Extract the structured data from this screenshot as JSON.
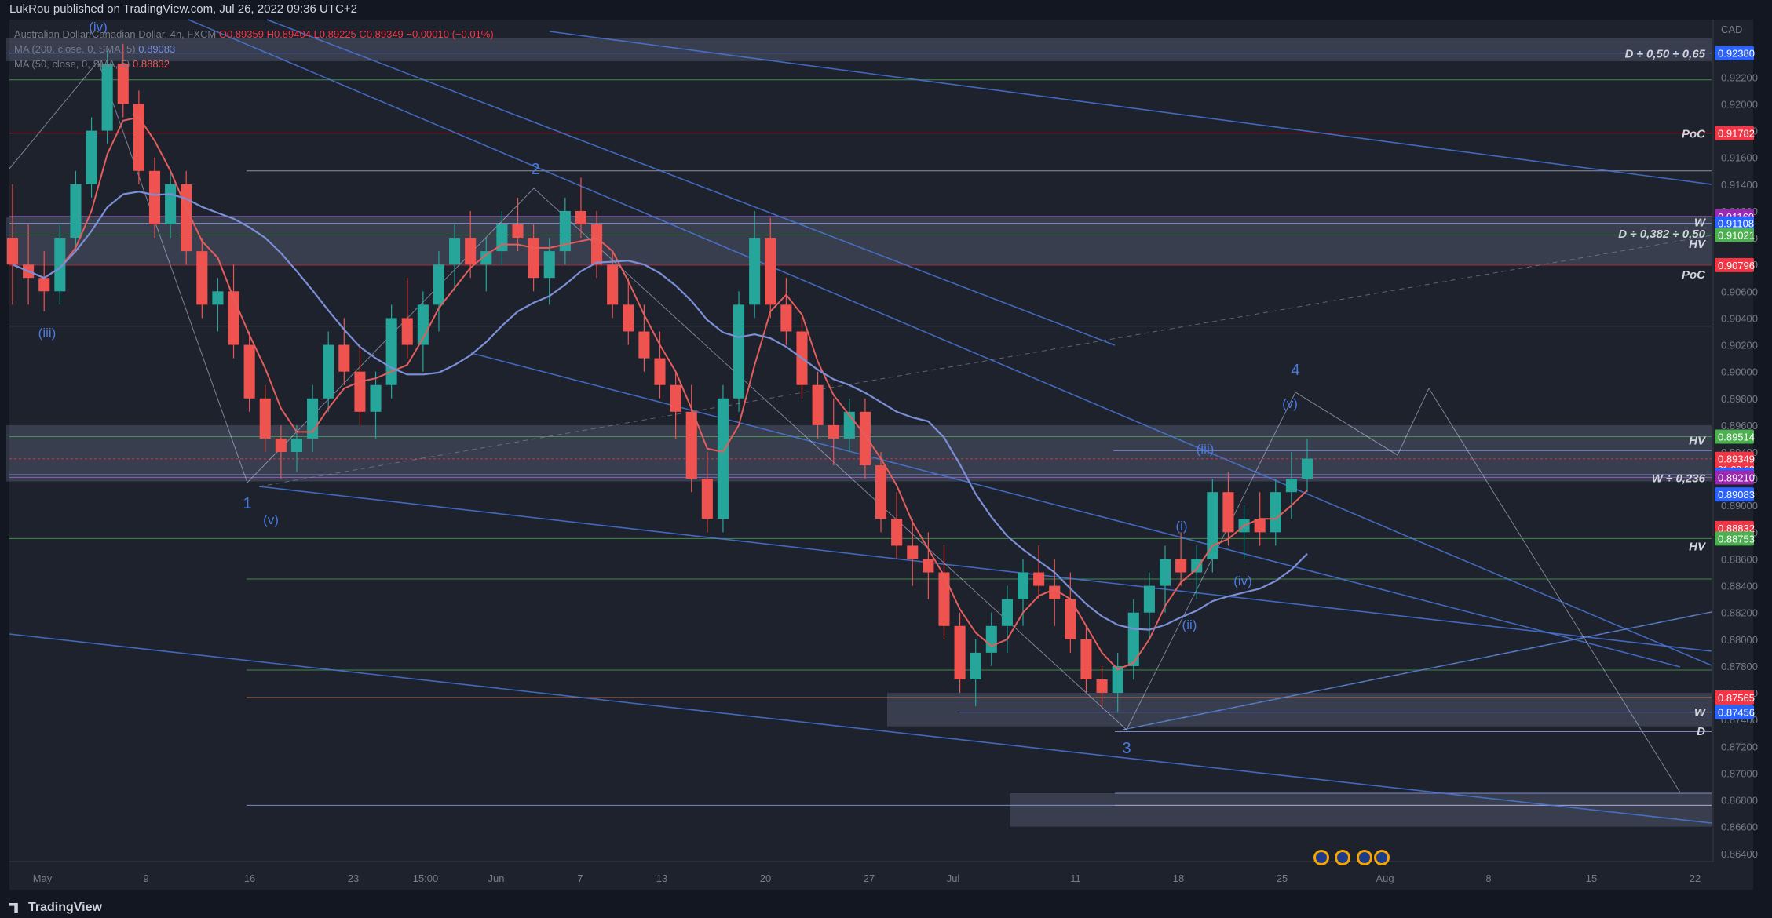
{
  "publish_text": "LukRou published on TradingView.com, Jul 26, 2022 09:36 UTC+2",
  "legend": {
    "symbol": "Australian Dollar/Canadian Dollar, 4h, FXCM",
    "ohlc": "O0.89359 H0.89404 L0.89225 C0.89349 −0.00010 (−0.01%)",
    "ma200": "MA (200, close, 0, SMA, 5)",
    "ma200_value": "0.89083",
    "ma50": "MA (50, close, 0, SMA, 5)",
    "ma50_value": "0.88832"
  },
  "footer": {
    "brand": "TradingView"
  },
  "colors": {
    "bg": "#131722",
    "pane": "#1e222d",
    "grid": "#2a2e39",
    "up": "#26a69a",
    "down": "#ef5350",
    "ma200": "#7b8fd6",
    "ma50": "#e35d5d",
    "zone": "#c7d3ff",
    "wave": "#4a7ae0",
    "hline_green": "#4caf50",
    "hline_red": "#f23645",
    "text": "#d1d4dc"
  },
  "chart_data": {
    "type": "candlestick",
    "symbol": "AUDCAD",
    "timeframe": "4h",
    "currency": "CAD",
    "x_ticks": [
      "May",
      "9",
      "16",
      "23",
      "15:00",
      "Jun",
      "7",
      "13",
      "20",
      "27",
      "Jul",
      "11",
      "18",
      "25",
      "Aug",
      "8",
      "15",
      "22"
    ],
    "y_ticks": [
      "0.92200",
      "0.92000",
      "0.91800",
      "0.91600",
      "0.91400",
      "0.91200",
      "0.91000",
      "0.90800",
      "0.90600",
      "0.90400",
      "0.90200",
      "0.90000",
      "0.89800",
      "0.89600",
      "0.89400",
      "0.89200",
      "0.89000",
      "0.88800",
      "0.88600",
      "0.88400",
      "0.88200",
      "0.88000",
      "0.87800",
      "0.87600",
      "0.87400",
      "0.87200",
      "0.87000",
      "0.86800",
      "0.86600",
      "0.86400"
    ],
    "ylim": [
      0.8634,
      0.9263
    ],
    "price_tags": [
      {
        "value": "0.92380",
        "color": "#2962ff"
      },
      {
        "value": "0.91782",
        "color": "#f23645"
      },
      {
        "value": "0.91160",
        "color": "#9c27b0"
      },
      {
        "value": "0.91108",
        "color": "#2962ff"
      },
      {
        "value": "0.91021",
        "color": "#4caf50"
      },
      {
        "value": "0.90796",
        "color": "#f23645"
      },
      {
        "value": "0.89514",
        "color": "#4caf50"
      },
      {
        "value": "0.89349",
        "color": "#f23645",
        "sub": "01:23:03"
      },
      {
        "value": "0.89230",
        "color": "#2962ff"
      },
      {
        "value": "0.89210",
        "color": "#9c27b0"
      },
      {
        "value": "0.89083",
        "color": "#2962ff"
      },
      {
        "value": "0.88832",
        "color": "#f23645"
      },
      {
        "value": "0.88753",
        "color": "#4caf50"
      },
      {
        "value": "0.87565",
        "color": "#f23645"
      },
      {
        "value": "0.87456",
        "color": "#2962ff"
      }
    ],
    "level_labels": [
      "D ÷ 0,50 ÷ 0,65",
      "PoC",
      "W",
      "D ÷ 0,382 ÷ 0,50",
      "HV",
      "PoC",
      "HV",
      "W ÷ 0,236",
      "HV",
      "W",
      "D"
    ],
    "wave_labels": [
      "(iv)",
      "(iii)",
      "1",
      "(v)",
      "2",
      "3",
      "4",
      "(v)",
      "(iii)",
      "(i)",
      "(ii)",
      "(iv)"
    ],
    "candles_approx": [
      [
        0.91,
        0.914,
        0.905,
        0.908
      ],
      [
        0.908,
        0.911,
        0.905,
        0.907
      ],
      [
        0.907,
        0.909,
        0.9045,
        0.906
      ],
      [
        0.906,
        0.911,
        0.905,
        0.91
      ],
      [
        0.91,
        0.915,
        0.909,
        0.914
      ],
      [
        0.914,
        0.919,
        0.913,
        0.918
      ],
      [
        0.918,
        0.924,
        0.917,
        0.923
      ],
      [
        0.923,
        0.9245,
        0.919,
        0.92
      ],
      [
        0.92,
        0.921,
        0.914,
        0.915
      ],
      [
        0.915,
        0.916,
        0.91,
        0.911
      ],
      [
        0.911,
        0.915,
        0.91,
        0.914
      ],
      [
        0.914,
        0.915,
        0.908,
        0.909
      ],
      [
        0.909,
        0.91,
        0.904,
        0.905
      ],
      [
        0.905,
        0.907,
        0.903,
        0.906
      ],
      [
        0.906,
        0.908,
        0.901,
        0.902
      ],
      [
        0.902,
        0.903,
        0.897,
        0.898
      ],
      [
        0.898,
        0.899,
        0.894,
        0.895
      ],
      [
        0.895,
        0.896,
        0.892,
        0.894
      ],
      [
        0.894,
        0.896,
        0.8925,
        0.895
      ],
      [
        0.895,
        0.899,
        0.894,
        0.898
      ],
      [
        0.898,
        0.903,
        0.897,
        0.902
      ],
      [
        0.902,
        0.904,
        0.899,
        0.9
      ],
      [
        0.9,
        0.902,
        0.896,
        0.897
      ],
      [
        0.897,
        0.9,
        0.895,
        0.899
      ],
      [
        0.899,
        0.905,
        0.898,
        0.904
      ],
      [
        0.904,
        0.907,
        0.901,
        0.902
      ],
      [
        0.902,
        0.906,
        0.9,
        0.905
      ],
      [
        0.905,
        0.909,
        0.903,
        0.908
      ],
      [
        0.908,
        0.911,
        0.906,
        0.91
      ],
      [
        0.91,
        0.912,
        0.907,
        0.908
      ],
      [
        0.908,
        0.91,
        0.906,
        0.909
      ],
      [
        0.909,
        0.912,
        0.908,
        0.911
      ],
      [
        0.911,
        0.913,
        0.909,
        0.91
      ],
      [
        0.91,
        0.911,
        0.906,
        0.907
      ],
      [
        0.907,
        0.91,
        0.905,
        0.909
      ],
      [
        0.909,
        0.913,
        0.908,
        0.912
      ],
      [
        0.912,
        0.9145,
        0.91,
        0.911
      ],
      [
        0.911,
        0.912,
        0.907,
        0.908
      ],
      [
        0.908,
        0.909,
        0.904,
        0.905
      ],
      [
        0.905,
        0.907,
        0.902,
        0.903
      ],
      [
        0.903,
        0.905,
        0.9,
        0.901
      ],
      [
        0.901,
        0.903,
        0.898,
        0.899
      ],
      [
        0.899,
        0.9,
        0.895,
        0.897
      ],
      [
        0.897,
        0.899,
        0.891,
        0.892
      ],
      [
        0.892,
        0.894,
        0.888,
        0.889
      ],
      [
        0.889,
        0.899,
        0.888,
        0.898
      ],
      [
        0.898,
        0.906,
        0.897,
        0.905
      ],
      [
        0.905,
        0.912,
        0.904,
        0.91
      ],
      [
        0.91,
        0.9115,
        0.904,
        0.905
      ],
      [
        0.905,
        0.907,
        0.902,
        0.903
      ],
      [
        0.903,
        0.904,
        0.898,
        0.899
      ],
      [
        0.899,
        0.9,
        0.895,
        0.896
      ],
      [
        0.896,
        0.898,
        0.893,
        0.895
      ],
      [
        0.895,
        0.898,
        0.894,
        0.897
      ],
      [
        0.897,
        0.898,
        0.892,
        0.893
      ],
      [
        0.893,
        0.894,
        0.888,
        0.889
      ],
      [
        0.889,
        0.891,
        0.886,
        0.887
      ],
      [
        0.887,
        0.889,
        0.884,
        0.886
      ],
      [
        0.886,
        0.888,
        0.883,
        0.885
      ],
      [
        0.885,
        0.887,
        0.88,
        0.881
      ],
      [
        0.881,
        0.882,
        0.876,
        0.877
      ],
      [
        0.877,
        0.88,
        0.875,
        0.879
      ],
      [
        0.879,
        0.882,
        0.878,
        0.881
      ],
      [
        0.881,
        0.884,
        0.879,
        0.883
      ],
      [
        0.883,
        0.886,
        0.881,
        0.885
      ],
      [
        0.885,
        0.887,
        0.883,
        0.884
      ],
      [
        0.884,
        0.886,
        0.881,
        0.883
      ],
      [
        0.883,
        0.885,
        0.879,
        0.88
      ],
      [
        0.88,
        0.881,
        0.876,
        0.877
      ],
      [
        0.877,
        0.878,
        0.875,
        0.876
      ],
      [
        0.876,
        0.879,
        0.8745,
        0.878
      ],
      [
        0.878,
        0.883,
        0.877,
        0.882
      ],
      [
        0.882,
        0.885,
        0.88,
        0.884
      ],
      [
        0.884,
        0.887,
        0.882,
        0.886
      ],
      [
        0.886,
        0.888,
        0.884,
        0.885
      ],
      [
        0.885,
        0.887,
        0.883,
        0.886
      ],
      [
        0.886,
        0.892,
        0.885,
        0.891
      ],
      [
        0.891,
        0.8925,
        0.887,
        0.888
      ],
      [
        0.888,
        0.89,
        0.886,
        0.889
      ],
      [
        0.889,
        0.891,
        0.887,
        0.888
      ],
      [
        0.888,
        0.892,
        0.887,
        0.891
      ],
      [
        0.891,
        0.894,
        0.889,
        0.892
      ],
      [
        0.892,
        0.895,
        0.891,
        0.8935
      ]
    ]
  }
}
